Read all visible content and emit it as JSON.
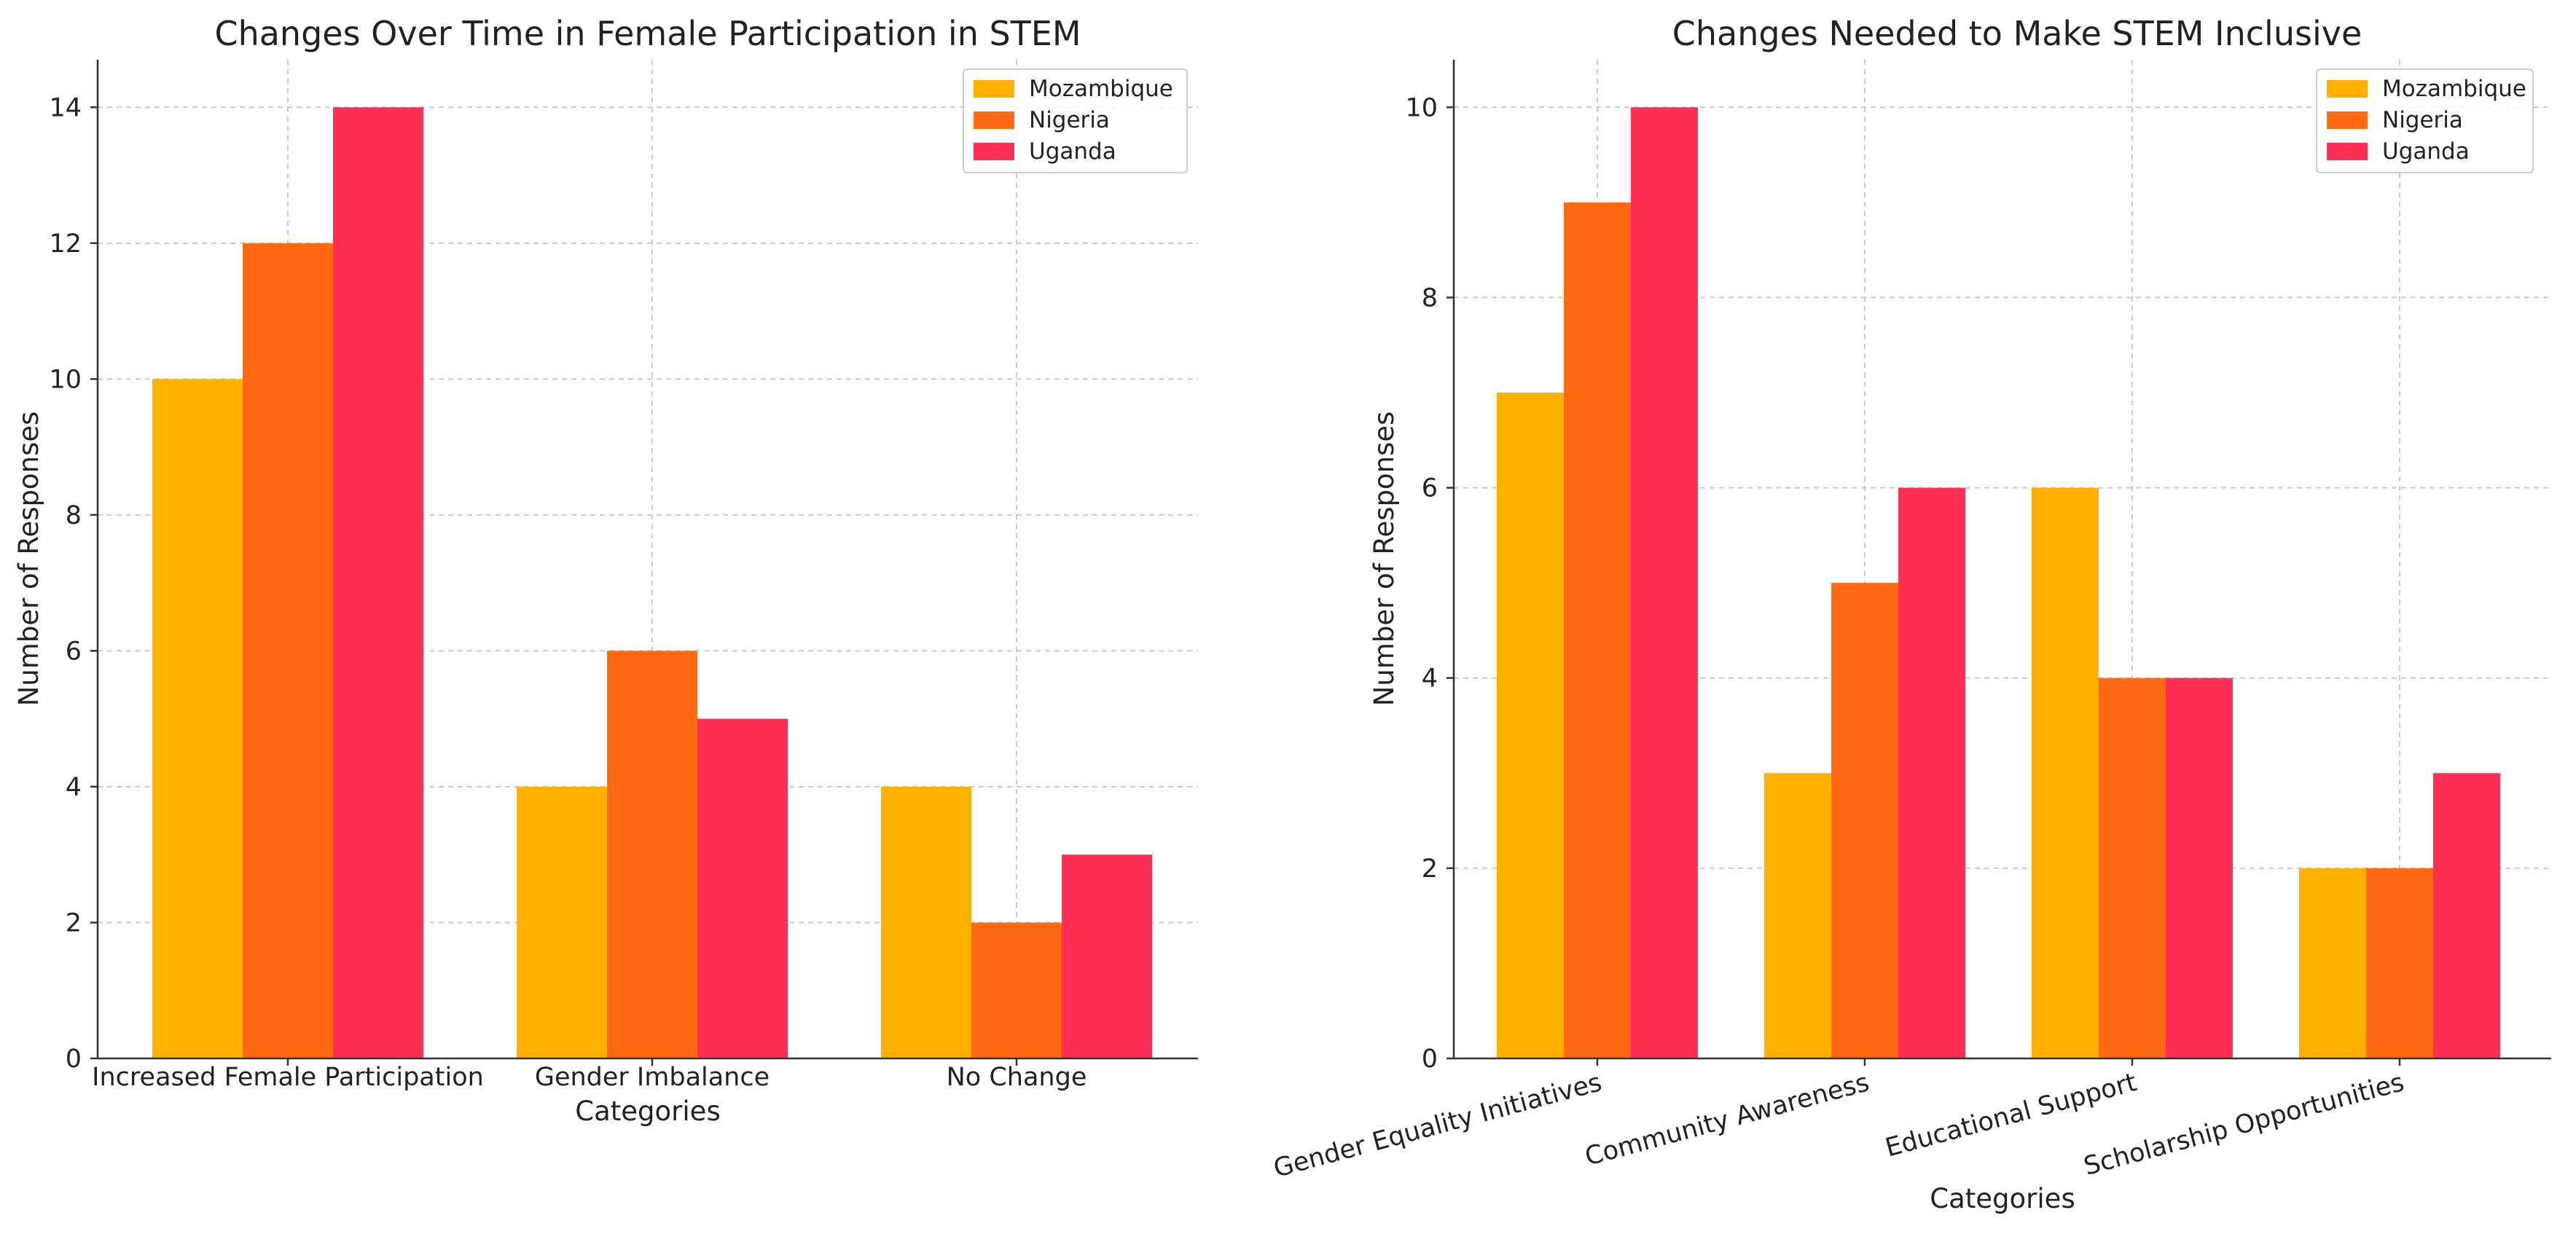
{
  "chart_data": [
    {
      "type": "bar",
      "title": "Changes Over Time in Female Participation in STEM",
      "xlabel": "Categories",
      "ylabel": "Number of Responses",
      "categories": [
        "Increased Female Participation",
        "Gender Imbalance",
        "No Change"
      ],
      "series": [
        {
          "name": "Mozambique",
          "values": [
            10,
            4,
            4
          ],
          "color": "#FFB000"
        },
        {
          "name": "Nigeria",
          "values": [
            12,
            6,
            2
          ],
          "color": "#FF6A13"
        },
        {
          "name": "Uganda",
          "values": [
            14,
            5,
            3
          ],
          "color": "#FF2E55"
        }
      ],
      "ylim": [
        0,
        14.7
      ],
      "yticks": [
        0,
        2,
        4,
        6,
        8,
        10,
        12,
        14
      ],
      "grid": true,
      "legend": "top-right",
      "xtick_rotation": 0
    },
    {
      "type": "bar",
      "title": "Changes Needed to Make STEM Inclusive",
      "xlabel": "Categories",
      "ylabel": "Number of Responses",
      "categories": [
        "Gender Equality Initiatives",
        "Community Awareness",
        "Educational Support",
        "Scholarship Opportunities"
      ],
      "series": [
        {
          "name": "Mozambique",
          "values": [
            7,
            3,
            6,
            2
          ],
          "color": "#FFB000"
        },
        {
          "name": "Nigeria",
          "values": [
            9,
            5,
            4,
            2
          ],
          "color": "#FF6A13"
        },
        {
          "name": "Uganda",
          "values": [
            10,
            6,
            4,
            3
          ],
          "color": "#FF2E55"
        }
      ],
      "ylim": [
        0,
        10.5
      ],
      "yticks": [
        0,
        2,
        4,
        6,
        8,
        10
      ],
      "grid": true,
      "legend": "top-right",
      "xtick_rotation": -15
    }
  ]
}
